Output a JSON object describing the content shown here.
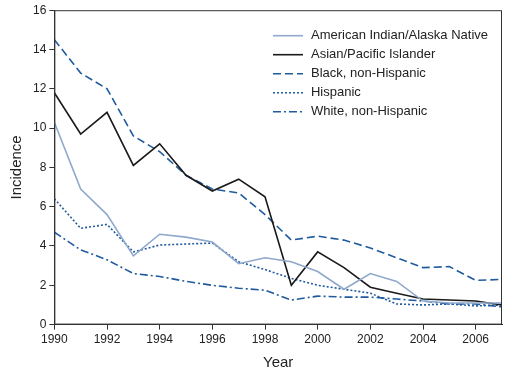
{
  "chart_data": {
    "type": "line",
    "x_label": "Year",
    "y_label": "Incidence",
    "x": [
      1990,
      1991,
      1992,
      1993,
      1994,
      1995,
      1996,
      1997,
      1998,
      1999,
      2000,
      2001,
      2002,
      2003,
      2004,
      2005,
      2006,
      2007
    ],
    "series": [
      {
        "name": "American Indian/Alaska Native",
        "color": "#8fa8cc",
        "line_style": "solid",
        "values": [
          10.3,
          6.9,
          5.6,
          3.5,
          4.6,
          4.45,
          4.2,
          3.1,
          3.4,
          3.2,
          2.7,
          1.8,
          2.6,
          2.2,
          1.2,
          1.1,
          1.1,
          1.1
        ]
      },
      {
        "name": "Asian/Pacific Islander",
        "color": "#1a1a1a",
        "line_style": "solid",
        "values": [
          11.8,
          9.7,
          10.8,
          8.1,
          9.2,
          7.6,
          6.8,
          7.4,
          6.5,
          2.0,
          3.7,
          2.9,
          1.9,
          1.6,
          1.3,
          1.25,
          1.2,
          1.0
        ]
      },
      {
        "name": "Black, non-Hispanic",
        "color": "#1f5b9e",
        "line_style": "dashed",
        "values": [
          14.5,
          12.8,
          12.0,
          9.6,
          8.8,
          7.6,
          6.9,
          6.7,
          5.6,
          4.3,
          4.5,
          4.3,
          3.9,
          3.4,
          2.9,
          2.95,
          2.25,
          2.3
        ]
      },
      {
        "name": "Hispanic",
        "color": "#1f5b9e",
        "line_style": "dotted",
        "values": [
          6.4,
          4.9,
          5.1,
          3.7,
          4.05,
          4.1,
          4.15,
          3.2,
          2.8,
          2.35,
          2.0,
          1.8,
          1.6,
          1.05,
          1.0,
          1.05,
          0.95,
          1.0
        ]
      },
      {
        "name": "White, non-Hispanic",
        "color": "#1f5b9e",
        "line_style": "dashdot",
        "values": [
          4.7,
          3.8,
          3.3,
          2.6,
          2.45,
          2.2,
          2.0,
          1.85,
          1.75,
          1.25,
          1.45,
          1.4,
          1.4,
          1.3,
          1.2,
          1.05,
          1.05,
          0.9
        ]
      }
    ],
    "xlim": [
      1990,
      2007
    ],
    "xticks": [
      1990,
      1992,
      1994,
      1996,
      1998,
      2000,
      2002,
      2004,
      2006
    ],
    "ylim": [
      0,
      16
    ],
    "yticks": [
      0,
      2,
      4,
      6,
      8,
      10,
      12,
      14,
      16
    ],
    "grid": false,
    "legend": "upper right"
  }
}
